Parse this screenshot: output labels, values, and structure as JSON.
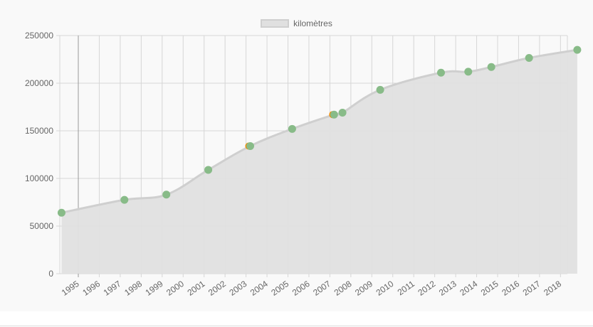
{
  "chart_data": {
    "type": "area",
    "legend": {
      "label": "kilomètres",
      "position": "top-center"
    },
    "x": [
      1994.2,
      1997.2,
      1999.2,
      2001.2,
      2003.2,
      2005.2,
      2007.2,
      2007.6,
      2009.4,
      2012.3,
      2013.6,
      2014.7,
      2016.5,
      2018.8
    ],
    "y": [
      64000,
      77500,
      83000,
      109000,
      134000,
      152000,
      167000,
      169000,
      193000,
      211000,
      212000,
      217000,
      226500,
      235000
    ],
    "highlight_indices": [
      4,
      6
    ],
    "xticks": [
      "1995",
      "1996",
      "1997",
      "1998",
      "1999",
      "2000",
      "2001",
      "2002",
      "2003",
      "2004",
      "2005",
      "2006",
      "2007",
      "2008",
      "2009",
      "2010",
      "2011",
      "2012",
      "2013",
      "2014",
      "2015",
      "2016",
      "2017",
      "2018"
    ],
    "yticks": [
      "0",
      "50000",
      "100000",
      "150000",
      "200000",
      "250000"
    ],
    "ylim": [
      0,
      250000
    ],
    "grid": true,
    "colors": {
      "area_fill": "#e0e0e0",
      "line": "#cfcfcf",
      "point": "#88bb88",
      "highlight_point": "#f28c00",
      "grid": "#d6d6d6",
      "axis": "#999999"
    }
  }
}
